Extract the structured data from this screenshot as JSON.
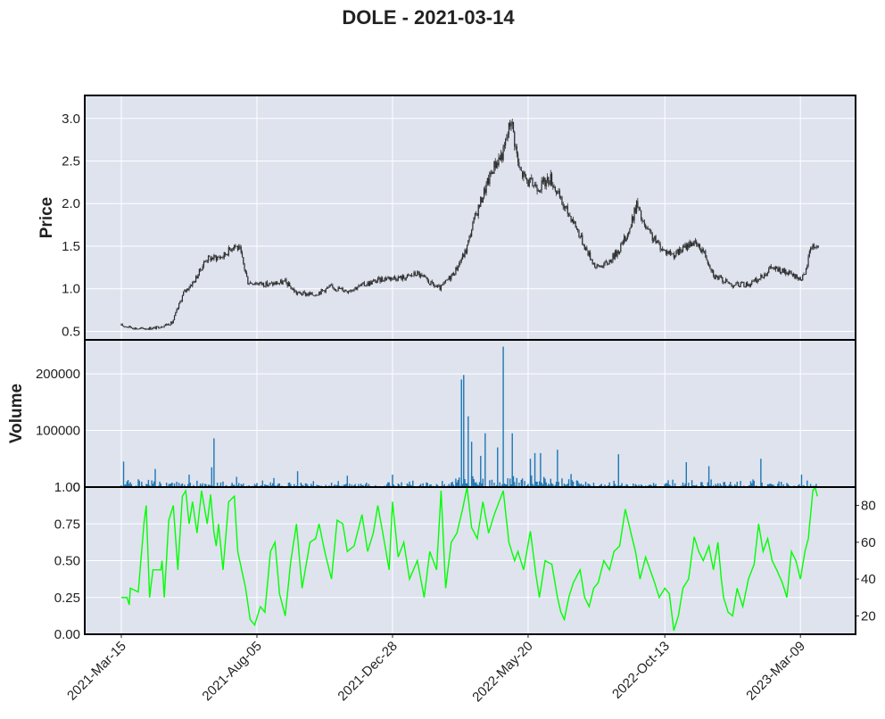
{
  "chart_data": {
    "title": "DOLE - 2021-03-14",
    "x_tick_labels": [
      "2021-Mar-15",
      "2021-Aug-05",
      "2021-Dec-28",
      "2022-May-20",
      "2022-Oct-13",
      "2023-Mar-09"
    ],
    "colors": {
      "panel_bg": "#dee3ee",
      "grid": "#ffffff",
      "candle": "#2b2b2b",
      "volume": "#1f77b4",
      "rsi_line": "#00ff00"
    },
    "panels": [
      {
        "type": "candlestick",
        "ylabel": "Price",
        "ylim": [
          0.4,
          3.27
        ],
        "yticks": [
          0.5,
          1.0,
          1.5,
          2.0,
          2.5,
          3.0
        ],
        "ytick_labels": [
          "0.5",
          "1.0",
          "1.5",
          "2.0",
          "2.5",
          "3.0"
        ],
        "close_anchors": [
          [
            0,
            0.57
          ],
          [
            15,
            0.53
          ],
          [
            30,
            0.54
          ],
          [
            45,
            0.6
          ],
          [
            55,
            0.95
          ],
          [
            65,
            1.1
          ],
          [
            75,
            1.35
          ],
          [
            90,
            1.38
          ],
          [
            100,
            1.52
          ],
          [
            105,
            1.45
          ],
          [
            112,
            1.08
          ],
          [
            130,
            1.05
          ],
          [
            145,
            1.08
          ],
          [
            155,
            0.95
          ],
          [
            170,
            0.93
          ],
          [
            185,
            1.02
          ],
          [
            200,
            0.98
          ],
          [
            215,
            1.05
          ],
          [
            235,
            1.13
          ],
          [
            250,
            1.13
          ],
          [
            262,
            1.18
          ],
          [
            275,
            1.05
          ],
          [
            282,
            1.0
          ],
          [
            295,
            1.2
          ],
          [
            305,
            1.45
          ],
          [
            312,
            1.8
          ],
          [
            320,
            2.1
          ],
          [
            330,
            2.45
          ],
          [
            338,
            2.6
          ],
          [
            345,
            3.0
          ],
          [
            352,
            2.4
          ],
          [
            360,
            2.25
          ],
          [
            370,
            2.2
          ],
          [
            380,
            2.3
          ],
          [
            390,
            2.0
          ],
          [
            400,
            1.8
          ],
          [
            410,
            1.5
          ],
          [
            420,
            1.25
          ],
          [
            430,
            1.3
          ],
          [
            440,
            1.45
          ],
          [
            450,
            1.7
          ],
          [
            456,
            2.0
          ],
          [
            462,
            1.75
          ],
          [
            470,
            1.6
          ],
          [
            480,
            1.45
          ],
          [
            490,
            1.4
          ],
          [
            505,
            1.55
          ],
          [
            515,
            1.45
          ],
          [
            525,
            1.15
          ],
          [
            540,
            1.05
          ],
          [
            555,
            1.05
          ],
          [
            565,
            1.12
          ],
          [
            575,
            1.25
          ],
          [
            590,
            1.18
          ],
          [
            600,
            1.12
          ],
          [
            605,
            1.15
          ],
          [
            610,
            1.5
          ]
        ]
      },
      {
        "type": "bar",
        "ylabel": "Volume",
        "ylim": [
          0,
          260000
        ],
        "yticks": [
          0,
          100000,
          200000
        ],
        "ytick_labels": [
          "0",
          "100000",
          "200000"
        ],
        "spikes": [
          [
            2,
            45000
          ],
          [
            30,
            32000
          ],
          [
            60,
            22000
          ],
          [
            80,
            35000
          ],
          [
            82,
            86000
          ],
          [
            102,
            18000
          ],
          [
            135,
            16000
          ],
          [
            156,
            28000
          ],
          [
            200,
            20000
          ],
          [
            240,
            22000
          ],
          [
            301,
            190000
          ],
          [
            303,
            198000
          ],
          [
            307,
            125000
          ],
          [
            310,
            80000
          ],
          [
            318,
            55000
          ],
          [
            322,
            95000
          ],
          [
            333,
            70000
          ],
          [
            338,
            248000
          ],
          [
            346,
            95000
          ],
          [
            362,
            50000
          ],
          [
            366,
            60000
          ],
          [
            371,
            60000
          ],
          [
            386,
            66000
          ],
          [
            440,
            58000
          ],
          [
            500,
            44000
          ],
          [
            520,
            37000
          ],
          [
            566,
            50000
          ],
          [
            602,
            22000
          ]
        ]
      },
      {
        "type": "line",
        "ylabel": "",
        "ylim": [
          10,
          90
        ],
        "yticks": [
          20,
          40,
          60,
          80
        ],
        "ytick_labels": [
          "20",
          "40",
          "60",
          "80"
        ],
        "left_ticks": [
          0,
          0.25,
          0.5,
          0.75,
          1.0
        ],
        "left_tick_labels": [
          "0.00",
          "0.25",
          "0.50",
          "0.75",
          "1.00"
        ],
        "rsi_anchors": [
          [
            0,
            30
          ],
          [
            5,
            30
          ],
          [
            7,
            26
          ],
          [
            8,
            35
          ],
          [
            15,
            33
          ],
          [
            20,
            70
          ],
          [
            22,
            80
          ],
          [
            25,
            30
          ],
          [
            28,
            45
          ],
          [
            35,
            45
          ],
          [
            36,
            50
          ],
          [
            38,
            30
          ],
          [
            42,
            72
          ],
          [
            46,
            80
          ],
          [
            50,
            45
          ],
          [
            54,
            85
          ],
          [
            57,
            88
          ],
          [
            60,
            70
          ],
          [
            63,
            82
          ],
          [
            67,
            65
          ],
          [
            71,
            88
          ],
          [
            76,
            70
          ],
          [
            79,
            86
          ],
          [
            82,
            65
          ],
          [
            84,
            58
          ],
          [
            86,
            70
          ],
          [
            90,
            45
          ],
          [
            95,
            82
          ],
          [
            100,
            85
          ],
          [
            103,
            55
          ],
          [
            110,
            35
          ],
          [
            114,
            18
          ],
          [
            118,
            15
          ],
          [
            123,
            25
          ],
          [
            127,
            22
          ],
          [
            132,
            55
          ],
          [
            136,
            60
          ],
          [
            140,
            32
          ],
          [
            145,
            20
          ],
          [
            150,
            50
          ],
          [
            155,
            70
          ],
          [
            160,
            35
          ],
          [
            167,
            60
          ],
          [
            172,
            62
          ],
          [
            175,
            70
          ],
          [
            180,
            55
          ],
          [
            186,
            40
          ],
          [
            191,
            72
          ],
          [
            196,
            70
          ],
          [
            200,
            55
          ],
          [
            206,
            58
          ],
          [
            213,
            75
          ],
          [
            218,
            55
          ],
          [
            223,
            65
          ],
          [
            227,
            80
          ],
          [
            232,
            63
          ],
          [
            237,
            45
          ],
          [
            240,
            82
          ],
          [
            245,
            52
          ],
          [
            250,
            60
          ],
          [
            255,
            40
          ],
          [
            262,
            50
          ],
          [
            268,
            30
          ],
          [
            273,
            55
          ],
          [
            279,
            45
          ],
          [
            283,
            88
          ],
          [
            287,
            35
          ],
          [
            292,
            60
          ],
          [
            297,
            65
          ],
          [
            302,
            78
          ],
          [
            306,
            90
          ],
          [
            310,
            68
          ],
          [
            315,
            62
          ],
          [
            320,
            82
          ],
          [
            325,
            65
          ],
          [
            330,
            75
          ],
          [
            338,
            88
          ],
          [
            343,
            60
          ],
          [
            348,
            50
          ],
          [
            351,
            55
          ],
          [
            356,
            45
          ],
          [
            362,
            66
          ],
          [
            367,
            42
          ],
          [
            370,
            30
          ],
          [
            375,
            50
          ],
          [
            381,
            48
          ],
          [
            386,
            30
          ],
          [
            389,
            22
          ],
          [
            392,
            18
          ],
          [
            396,
            30
          ],
          [
            400,
            38
          ],
          [
            406,
            45
          ],
          [
            410,
            30
          ],
          [
            414,
            25
          ],
          [
            418,
            35
          ],
          [
            422,
            38
          ],
          [
            427,
            50
          ],
          [
            432,
            45
          ],
          [
            436,
            55
          ],
          [
            441,
            58
          ],
          [
            446,
            78
          ],
          [
            451,
            65
          ],
          [
            455,
            55
          ],
          [
            459,
            40
          ],
          [
            464,
            52
          ],
          [
            468,
            45
          ],
          [
            472,
            38
          ],
          [
            476,
            30
          ],
          [
            481,
            35
          ],
          [
            485,
            32
          ],
          [
            489,
            12
          ],
          [
            493,
            20
          ],
          [
            497,
            35
          ],
          [
            502,
            40
          ],
          [
            507,
            63
          ],
          [
            511,
            55
          ],
          [
            515,
            50
          ],
          [
            520,
            58
          ],
          [
            524,
            45
          ],
          [
            528,
            60
          ],
          [
            531,
            40
          ],
          [
            533,
            30
          ],
          [
            537,
            22
          ],
          [
            541,
            20
          ],
          [
            545,
            35
          ],
          [
            550,
            25
          ],
          [
            555,
            40
          ],
          [
            560,
            48
          ],
          [
            564,
            70
          ],
          [
            568,
            55
          ],
          [
            572,
            62
          ],
          [
            576,
            50
          ],
          [
            580,
            45
          ],
          [
            585,
            38
          ],
          [
            589,
            30
          ],
          [
            593,
            55
          ],
          [
            597,
            50
          ],
          [
            601,
            40
          ],
          [
            605,
            55
          ],
          [
            608,
            62
          ],
          [
            612,
            88
          ],
          [
            614,
            90
          ],
          [
            616,
            85
          ]
        ]
      }
    ]
  }
}
